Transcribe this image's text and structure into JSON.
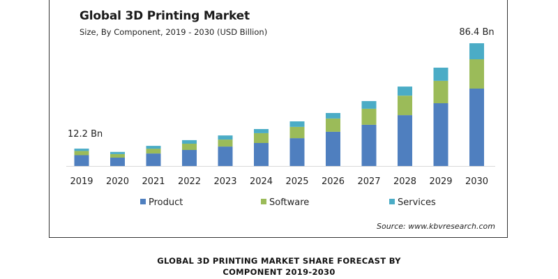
{
  "chart_data": {
    "type": "bar",
    "stacked": true,
    "title": "Global 3D Printing Market",
    "subtitle": "Size, By Component,  2019 - 2030 (USD Billion)",
    "xlabel": "",
    "ylabel": "",
    "categories": [
      "2019",
      "2020",
      "2021",
      "2022",
      "2023",
      "2024",
      "2025",
      "2026",
      "2027",
      "2028",
      "2029",
      "2030"
    ],
    "series": [
      {
        "name": "Product",
        "color": "#4f7fbf",
        "values": [
          7.6,
          5.9,
          8.8,
          11.3,
          13.7,
          16.2,
          19.6,
          24.1,
          29.0,
          35.8,
          44.2,
          54.5
        ]
      },
      {
        "name": "Software",
        "color": "#9bbb59",
        "values": [
          3.0,
          2.5,
          3.4,
          4.4,
          4.9,
          6.9,
          7.9,
          9.3,
          11.3,
          13.7,
          15.7,
          20.6
        ]
      },
      {
        "name": "Services",
        "color": "#4bacc6",
        "values": [
          1.6,
          1.5,
          2.0,
          2.5,
          2.9,
          2.9,
          3.9,
          3.9,
          5.4,
          6.4,
          9.3,
          11.3
        ]
      }
    ],
    "ylim": [
      0,
      86.4
    ],
    "grid": false,
    "legend": "bottom",
    "annotations": [
      {
        "category": "2019",
        "text": "12.2 Bn"
      },
      {
        "category": "2030",
        "text": "86.4 Bn"
      }
    ],
    "source": "Source: www.kbvresearch.com"
  },
  "caption": {
    "line1": "GLOBAL 3D PRINTING MARKET SHARE FORECAST BY",
    "line2": "COMPONENT 2019-2030"
  }
}
